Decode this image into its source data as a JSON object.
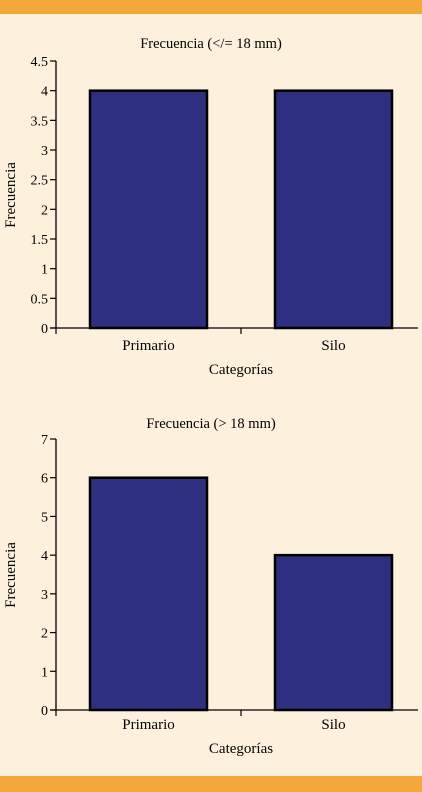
{
  "colors": {
    "background": "#fdf1dd",
    "band": "#f4a73b",
    "bar_fill": "#2e2f80",
    "bar_stroke": "#000000"
  },
  "chart_data": [
    {
      "type": "bar",
      "title": "Frecuencia (</= 18 mm)",
      "xlabel": "Categorías",
      "ylabel": "Frecuencia",
      "categories": [
        "Primario",
        "Silo"
      ],
      "values": [
        4,
        4
      ],
      "ylim": [
        0,
        4.5
      ],
      "yticks": [
        "0",
        "0.5",
        "1",
        "1.5",
        "2",
        "2.5",
        "3",
        "3.5",
        "4",
        "4.5"
      ],
      "grid": false
    },
    {
      "type": "bar",
      "title": "Frecuencia (> 18 mm)",
      "xlabel": "Categorías",
      "ylabel": "Frecuencia",
      "categories": [
        "Primario",
        "Silo"
      ],
      "values": [
        6,
        4
      ],
      "ylim": [
        0,
        7
      ],
      "yticks": [
        "0",
        "1",
        "2",
        "3",
        "4",
        "5",
        "6",
        "7"
      ],
      "grid": false
    }
  ]
}
